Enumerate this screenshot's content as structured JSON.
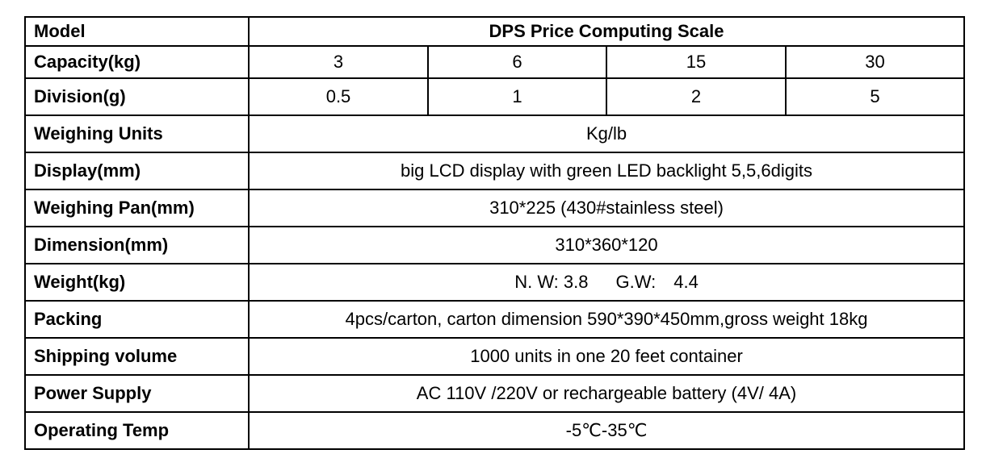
{
  "table": {
    "model": {
      "label": "Model",
      "value": "DPS Price Computing Scale"
    },
    "capacity": {
      "label": "Capacity(kg)",
      "values": [
        "3",
        "6",
        "15",
        "30"
      ]
    },
    "division": {
      "label": "Division(g)",
      "values": [
        "0.5",
        "1",
        "2",
        "5"
      ]
    },
    "weighing_units": {
      "label": "Weighing Units",
      "value": "Kg/lb"
    },
    "display": {
      "label": "Display(mm)",
      "value": "big LCD display with green LED backlight 5,5,6digits"
    },
    "weighing_pan": {
      "label": "Weighing Pan(mm)",
      "value": "310*225 (430#stainless steel)"
    },
    "dimension": {
      "label": "Dimension(mm)",
      "value": "310*360*120"
    },
    "weight": {
      "label": "Weight(kg)",
      "nw": "N. W: 3.8",
      "gw_label": "G.W:",
      "gw_value": "4.4"
    },
    "packing": {
      "label": "Packing",
      "value": "4pcs/carton, carton dimension 590*390*450mm,gross weight 18kg"
    },
    "shipping_volume": {
      "label": "Shipping volume",
      "value": "1000 units in one 20 feet container"
    },
    "power_supply": {
      "label": "Power Supply",
      "value": "AC 110V /220V or rechargeable battery (4V/ 4A)"
    },
    "operating_temp": {
      "label": "Operating Temp",
      "value": "-5℃-35℃"
    }
  }
}
